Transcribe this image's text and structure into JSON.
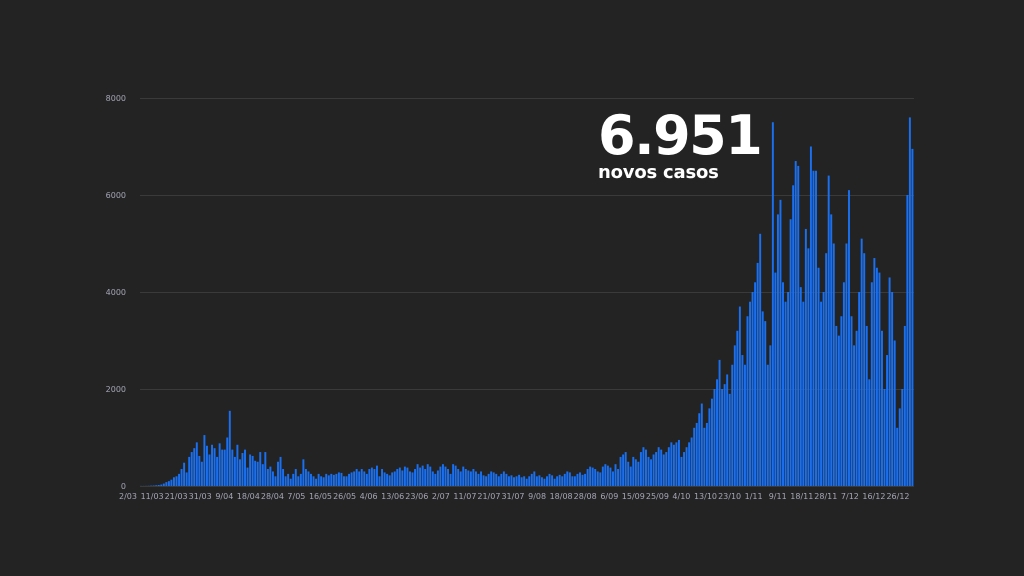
{
  "headline": {
    "value": "6.951",
    "label": "novos casos"
  },
  "colors": {
    "background": "#232323",
    "bar": "#1a70f0",
    "text": "#ffffff",
    "axis_text": "#a6a6b8",
    "grid": "#3a3a3a"
  },
  "chart_data": {
    "type": "bar",
    "title": "",
    "xlabel": "",
    "ylabel": "",
    "ylim": [
      0,
      8000
    ],
    "yticks": [
      0,
      2000,
      4000,
      6000,
      8000
    ],
    "grid": true,
    "legend": "none",
    "xtick_labels": [
      "2/03",
      "11/03",
      "21/03",
      "31/03",
      "9/04",
      "18/04",
      "28/04",
      "7/05",
      "16/05",
      "26/05",
      "4/06",
      "13/06",
      "23/06",
      "2/07",
      "11/07",
      "21/07",
      "31/07",
      "9/08",
      "18/08",
      "28/08",
      "6/09",
      "15/09",
      "25/09",
      "4/10",
      "13/10",
      "23/10",
      "1/11",
      "9/11",
      "18/11",
      "28/11",
      "7/12",
      "16/12",
      "26/12"
    ],
    "series": [
      {
        "values": [
          2,
          2,
          3,
          5,
          8,
          10,
          15,
          20,
          30,
          50,
          80,
          100,
          130,
          180,
          200,
          250,
          350,
          480,
          280,
          600,
          700,
          780,
          900,
          620,
          500,
          1050,
          830,
          650,
          850,
          780,
          600,
          880,
          750,
          750,
          1000,
          1550,
          750,
          600,
          850,
          550,
          680,
          750,
          380,
          650,
          620,
          520,
          500,
          700,
          450,
          700,
          350,
          400,
          300,
          200,
          500,
          600,
          350,
          200,
          250,
          150,
          250,
          350,
          200,
          250,
          550,
          350,
          300,
          250,
          200,
          150,
          250,
          200,
          180,
          250,
          220,
          250,
          230,
          250,
          280,
          270,
          200,
          200,
          250,
          280,
          300,
          350,
          300,
          350,
          300,
          250,
          350,
          380,
          350,
          420,
          200,
          350,
          280,
          250,
          220,
          280,
          300,
          350,
          380,
          320,
          400,
          380,
          300,
          280,
          350,
          450,
          380,
          420,
          350,
          450,
          400,
          300,
          250,
          320,
          400,
          450,
          400,
          350,
          250,
          450,
          420,
          350,
          300,
          400,
          350,
          320,
          300,
          350,
          300,
          250,
          300,
          220,
          200,
          250,
          300,
          280,
          250,
          200,
          250,
          300,
          250,
          200,
          220,
          180,
          200,
          230,
          180,
          200,
          150,
          200,
          250,
          300,
          200,
          220,
          180,
          150,
          200,
          250,
          220,
          150,
          200,
          230,
          200,
          250,
          300,
          280,
          200,
          200,
          250,
          280,
          230,
          250,
          350,
          400,
          380,
          350,
          300,
          280,
          400,
          450,
          420,
          380,
          300,
          450,
          350,
          600,
          650,
          700,
          500,
          400,
          600,
          550,
          500,
          700,
          800,
          750,
          600,
          550,
          650,
          700,
          800,
          750,
          650,
          700,
          800,
          900,
          850,
          900,
          950,
          600,
          700,
          800,
          900,
          1000,
          1200,
          1300,
          1500,
          1700,
          1200,
          1300,
          1600,
          1800,
          2000,
          2200,
          2600,
          2000,
          2100,
          2300,
          1900,
          2500,
          2900,
          3200,
          3700,
          2700,
          2500,
          3500,
          3800,
          4000,
          4200,
          4600,
          5200,
          3600,
          3400,
          2500,
          2900,
          7500,
          4400,
          5600,
          5900,
          4200,
          3800,
          4000,
          5500,
          6200,
          6700,
          6600,
          4100,
          3800,
          5300,
          4900,
          7000,
          6500,
          6500,
          4500,
          3800,
          4000,
          4800,
          6400,
          5600,
          5000,
          3300,
          3100,
          3500,
          4200,
          5000,
          6100,
          3500,
          2900,
          3200,
          4000,
          5100,
          4800,
          3300,
          2200,
          4200,
          4700,
          4500,
          4400,
          3200,
          2000,
          2700,
          4300,
          4000,
          3000,
          1200,
          1600,
          2000,
          3300,
          6000,
          7600,
          6951
        ]
      }
    ]
  }
}
